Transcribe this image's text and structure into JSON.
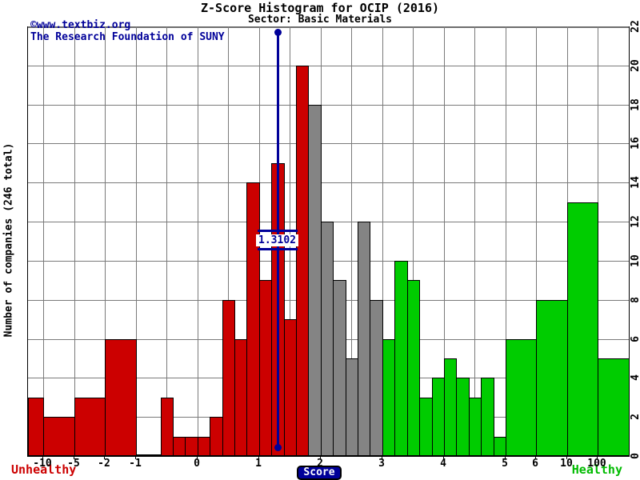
{
  "header": {
    "title": "Z-Score Histogram for OCIP (2016)",
    "subtitle": "Sector: Basic Materials"
  },
  "watermark": {
    "line1": "©www.textbiz.org",
    "line2": "The Research Foundation of SUNY"
  },
  "axes": {
    "y_left_label": "Number of companies (246 total)",
    "x_label": "Score",
    "y_right_ticks": [
      0,
      2,
      4,
      6,
      8,
      10,
      12,
      14,
      16,
      18,
      20,
      22
    ]
  },
  "zones": {
    "unhealthy_label": "Unhealthy",
    "healthy_label": "Healthy"
  },
  "marker": {
    "label": "1.3102",
    "z": 1.3102,
    "su": 8.1204
  },
  "colors": {
    "distress": "#cc0000",
    "grey": "#848484",
    "safe": "#00cc00",
    "marker_blue": "#000099",
    "grid": "#7a7a7a"
  },
  "chart_data": {
    "type": "bar",
    "subtype": "histogram",
    "title": "Z-Score Histogram for OCIP (2016)",
    "subtitle": "Sector: Basic Materials",
    "xlabel": "Score",
    "ylabel": "Number of companies (246 total)",
    "total_companies": 246,
    "marker_z": 1.3102,
    "ylim": [
      0,
      22
    ],
    "y_gridline_step": 2,
    "grid": true,
    "x_ticks": [
      {
        "label": "-10",
        "su": 0.5
      },
      {
        "label": "-5",
        "su": 1.5
      },
      {
        "label": "-2",
        "su": 2.5
      },
      {
        "label": "-1",
        "su": 3.5
      },
      {
        "label": "0",
        "su": 5.5
      },
      {
        "label": "1",
        "su": 7.5
      },
      {
        "label": "2",
        "su": 9.5
      },
      {
        "label": "3",
        "su": 11.5
      },
      {
        "label": "4",
        "su": 13.5
      },
      {
        "label": "5",
        "su": 15.5
      },
      {
        "label": "6",
        "su": 16.5
      },
      {
        "label": "10",
        "su": 17.5
      },
      {
        "label": "100",
        "su": 18.5
      }
    ],
    "v_gridlines_su": [
      0.5,
      1.5,
      2.5,
      3.5,
      4.5,
      5.5,
      6.5,
      7.5,
      8.5,
      9.5,
      10.5,
      11.5,
      12.5,
      13.5,
      14.5,
      15.5,
      16.5,
      17.5,
      18.5
    ],
    "su_span": 19.5,
    "bins_columns": [
      "range",
      "su_start",
      "su_end",
      "count",
      "zone"
    ],
    "bins": [
      [
        "< -10",
        0.0,
        0.5,
        3,
        "distress"
      ],
      [
        "-10 to -5",
        0.5,
        1.5,
        2,
        "distress"
      ],
      [
        "-5 to -2",
        1.5,
        2.5,
        3,
        "distress"
      ],
      [
        "-2 to -1",
        2.5,
        3.5,
        6,
        "distress"
      ],
      [
        "-1 to -0.8",
        3.5,
        3.9,
        0,
        "distress"
      ],
      [
        "-0.8 to -0.6",
        3.9,
        4.3,
        0,
        "distress"
      ],
      [
        "-0.6 to -0.4",
        4.3,
        4.7,
        3,
        "distress"
      ],
      [
        "-0.4 to -0.2",
        4.7,
        5.1,
        1,
        "distress"
      ],
      [
        "-0.2 to 0",
        5.1,
        5.5,
        1,
        "distress"
      ],
      [
        "0 to 0.2",
        5.5,
        5.9,
        1,
        "distress"
      ],
      [
        "0.2 to 0.4",
        5.9,
        6.3,
        2,
        "distress"
      ],
      [
        "0.4 to 0.6",
        6.3,
        6.7,
        8,
        "distress"
      ],
      [
        "0.6 to 0.8",
        6.7,
        7.1,
        6,
        "distress"
      ],
      [
        "0.8 to 1",
        7.1,
        7.5,
        14,
        "distress"
      ],
      [
        "1 to 1.2",
        7.5,
        7.9,
        9,
        "distress"
      ],
      [
        "1.2 to 1.4",
        7.9,
        8.3,
        15,
        "distress"
      ],
      [
        "1.4 to 1.6",
        8.3,
        8.7,
        7,
        "distress"
      ],
      [
        "1.6 to 1.8",
        8.7,
        9.1,
        20,
        "distress"
      ],
      [
        "1.8 to 2",
        9.1,
        9.5,
        18,
        "grey"
      ],
      [
        "2 to 2.2",
        9.5,
        9.9,
        12,
        "grey"
      ],
      [
        "2.2 to 2.4",
        9.9,
        10.3,
        9,
        "grey"
      ],
      [
        "2.4 to 2.6",
        10.3,
        10.7,
        5,
        "grey"
      ],
      [
        "2.6 to 2.8",
        10.7,
        11.1,
        12,
        "grey"
      ],
      [
        "2.8 to 3",
        11.1,
        11.5,
        8,
        "grey"
      ],
      [
        "3 to 3.2",
        11.5,
        11.9,
        6,
        "safe"
      ],
      [
        "3.2 to 3.4",
        11.9,
        12.3,
        10,
        "safe"
      ],
      [
        "3.4 to 3.6",
        12.3,
        12.7,
        9,
        "safe"
      ],
      [
        "3.6 to 3.8",
        12.7,
        13.1,
        3,
        "safe"
      ],
      [
        "3.8 to 4",
        13.1,
        13.5,
        4,
        "safe"
      ],
      [
        "4 to 4.2",
        13.5,
        13.9,
        5,
        "safe"
      ],
      [
        "4.2 to 4.4",
        13.9,
        14.3,
        4,
        "safe"
      ],
      [
        "4.4 to 4.6",
        14.3,
        14.7,
        3,
        "safe"
      ],
      [
        "4.6 to 4.8",
        14.7,
        15.1,
        4,
        "safe"
      ],
      [
        "4.8 to 5",
        15.1,
        15.5,
        1,
        "safe"
      ],
      [
        "5 to 6",
        15.5,
        16.5,
        6,
        "safe"
      ],
      [
        "6 to 10",
        16.5,
        17.5,
        8,
        "safe"
      ],
      [
        "10 to 100",
        17.5,
        18.5,
        13,
        "safe"
      ],
      [
        "> 100",
        18.5,
        19.5,
        5,
        "safe"
      ]
    ]
  }
}
